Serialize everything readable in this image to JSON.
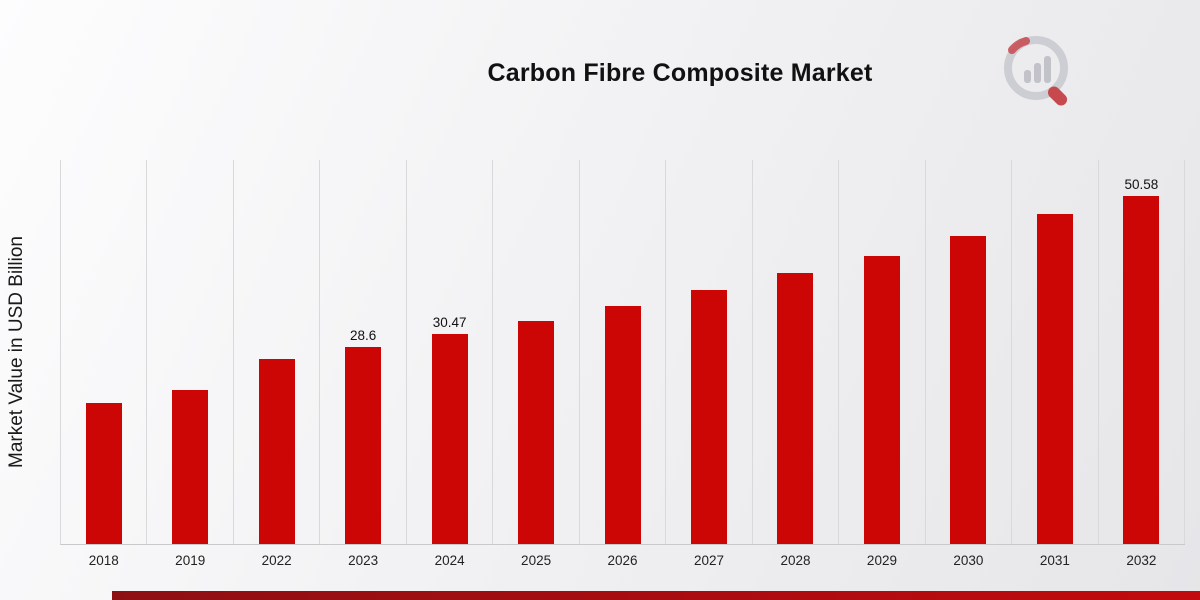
{
  "chart_data": {
    "type": "bar",
    "title": "Carbon Fibre Composite Market",
    "ylabel": "Market Value in USD Billion",
    "xlabel": "",
    "categories": [
      "2018",
      "2019",
      "2022",
      "2023",
      "2024",
      "2025",
      "2026",
      "2027",
      "2028",
      "2029",
      "2030",
      "2031",
      "2032"
    ],
    "values": [
      20.5,
      22.4,
      26.9,
      28.6,
      30.47,
      32.45,
      34.6,
      36.9,
      39.4,
      41.9,
      44.7,
      47.9,
      50.58
    ],
    "point_labels": [
      "",
      "",
      "",
      "28.6",
      "30.47",
      "",
      "",
      "",
      "",
      "",
      "",
      "",
      "50.58"
    ],
    "ylim": [
      0,
      55.8
    ],
    "grid": "vertical-only",
    "legend": "none"
  },
  "colors": {
    "bar": "#CC0605",
    "gridline": "#D9D9DB",
    "baseline": "#C9C9CC",
    "stripe_start": "#8E0F13",
    "stripe_end": "#C20A0E",
    "title_text": "#111111",
    "axis_text": "#1A1A1A",
    "logo_gray": "#CDCED3",
    "logo_red": "#C5494D"
  }
}
